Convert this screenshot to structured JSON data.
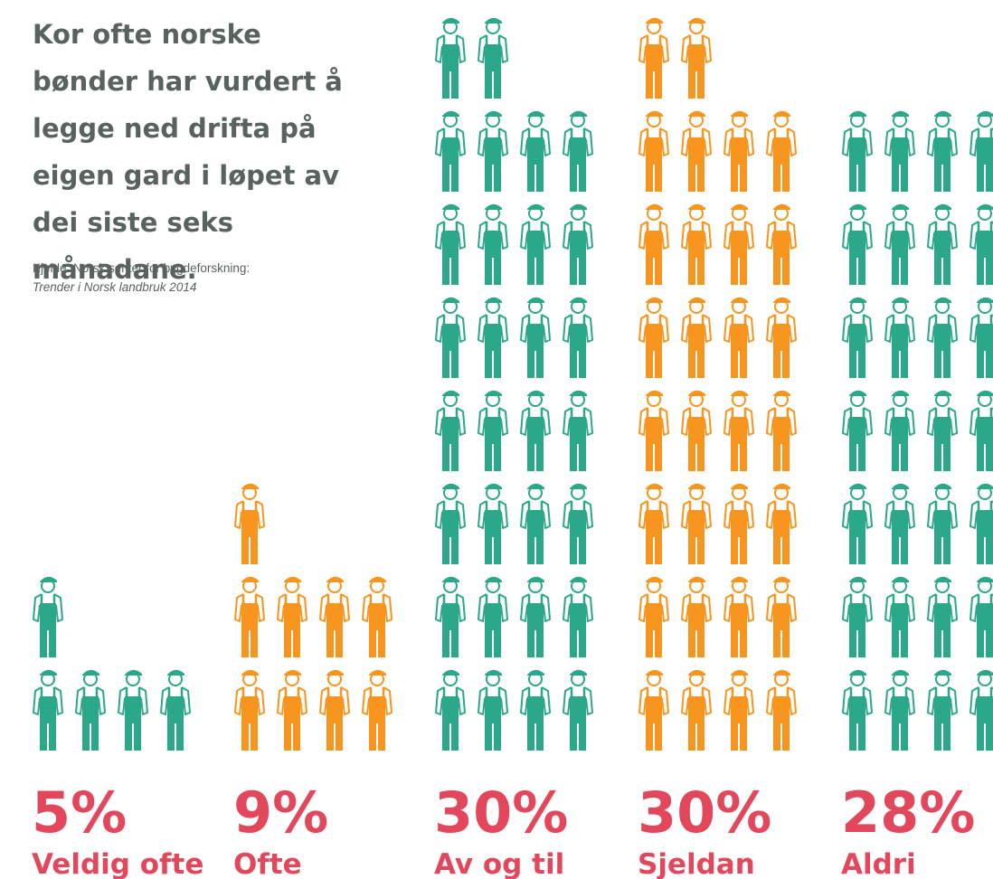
{
  "chart_data": {
    "type": "pictogram",
    "title": "Kor ofte norske bønder har vurdert å legge ned drifta på eigen gard i løpet av dei siste seks månadane.",
    "source": "Kjelde: Norsk senter for bygdeforskning:",
    "source_title": "Trender i Norsk landbruk 2014",
    "categories": [
      "Veldig ofte",
      "Ofte",
      "Av og til",
      "Sjeldan",
      "Aldri"
    ],
    "values": [
      5,
      9,
      30,
      30,
      28
    ],
    "value_labels": [
      "5%",
      "9%",
      "30%",
      "30%",
      "28%"
    ],
    "colors": [
      "#2aa889",
      "#f7951e",
      "#2aa889",
      "#f7951e",
      "#2aa889"
    ],
    "label_color": "#e2475c"
  }
}
